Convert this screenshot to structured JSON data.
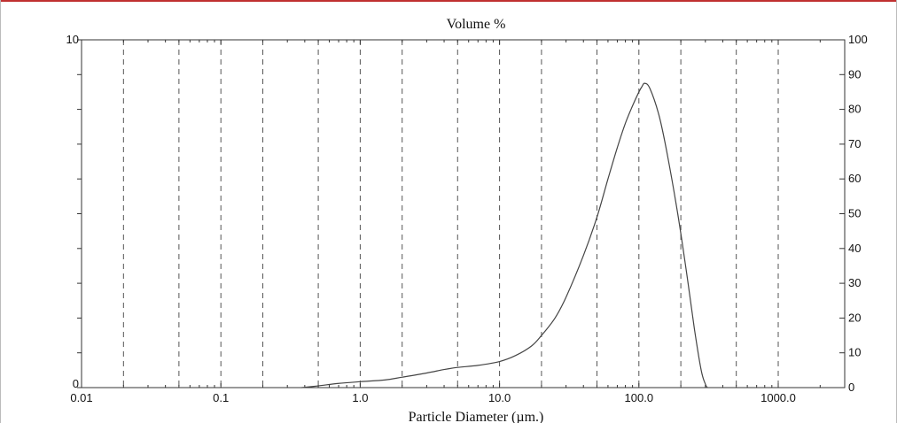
{
  "chart_data": {
    "type": "line",
    "title": "Volume %",
    "xlabel": "Particle Diameter (µm.)",
    "x_scale": "log",
    "xlim": [
      0.01,
      3000
    ],
    "x_ticks": [
      {
        "value": 0.01,
        "label": "0.01"
      },
      {
        "value": 0.1,
        "label": "0.1"
      },
      {
        "value": 1.0,
        "label": "1.0"
      },
      {
        "value": 10.0,
        "label": "10.0"
      },
      {
        "value": 100.0,
        "label": "100.0"
      },
      {
        "value": 1000.0,
        "label": "1000.0"
      }
    ],
    "x_gridlines": [
      0.02,
      0.05,
      0.1,
      0.2,
      0.5,
      1,
      2,
      5,
      10,
      20,
      50,
      100,
      200,
      500,
      1000
    ],
    "grid": "dashed vertical",
    "left_axis": {
      "ylim": [
        0,
        10
      ],
      "tick_labels": [
        {
          "value": 0,
          "label": "0"
        },
        {
          "value": 10,
          "label": "10"
        }
      ]
    },
    "right_axis": {
      "ylim": [
        0,
        100
      ],
      "tick_labels": [
        "0",
        "10",
        "20",
        "30",
        "40",
        "50",
        "60",
        "70",
        "80",
        "90",
        "100"
      ]
    },
    "series": [
      {
        "color": "#444444",
        "x": [
          0.38,
          0.5,
          0.7,
          1.0,
          1.5,
          2.0,
          3.0,
          4.0,
          5.0,
          7.0,
          10.0,
          13.0,
          17.0,
          20.0,
          25.0,
          30.0,
          40.0,
          50.0,
          60.0,
          70.0,
          80.0,
          90.0,
          100.0,
          105.0,
          110.0,
          120.0,
          140.0,
          160.0,
          190.0,
          220.0,
          250.0,
          280.0,
          300.0,
          310.0
        ],
        "y": [
          0.0,
          0.05,
          0.12,
          0.17,
          0.22,
          0.3,
          0.42,
          0.52,
          0.58,
          0.64,
          0.75,
          0.92,
          1.2,
          1.5,
          2.0,
          2.6,
          3.8,
          4.9,
          6.0,
          6.9,
          7.6,
          8.1,
          8.5,
          8.65,
          8.75,
          8.6,
          7.8,
          6.7,
          5.0,
          3.3,
          1.7,
          0.5,
          0.1,
          0.0
        ]
      }
    ]
  }
}
